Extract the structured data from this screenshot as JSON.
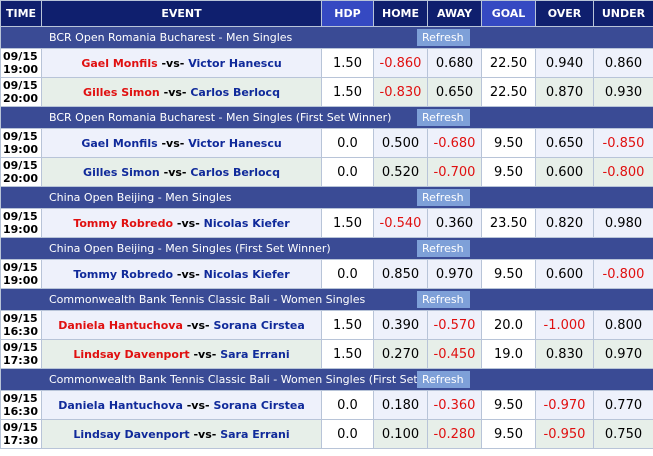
{
  "header": {
    "time": "TIME",
    "event": "EVENT",
    "hdp": "HDP",
    "home": "HOME",
    "away": "AWAY",
    "goal": "GOAL",
    "over": "OVER",
    "under": "UNDER"
  },
  "refresh_label": "Refresh",
  "vs_label": "-vs-",
  "sections": [
    {
      "league": "BCR Open Romania Bucharest - Men Singles",
      "matches": [
        {
          "date": "09/15",
          "time": "19:00",
          "home": "Gael Monfils",
          "away": "Victor Hanescu",
          "home_color": "red",
          "away_color": "navy",
          "hdp": "1.50",
          "home_odds": "-0.860",
          "away_odds": "0.680",
          "goal": "22.50",
          "over": "0.940",
          "under": "0.860"
        },
        {
          "date": "09/15",
          "time": "20:00",
          "home": "Gilles Simon",
          "away": "Carlos Berlocq",
          "home_color": "red",
          "away_color": "navy",
          "hdp": "1.50",
          "home_odds": "-0.830",
          "away_odds": "0.650",
          "goal": "22.50",
          "over": "0.870",
          "under": "0.930"
        }
      ]
    },
    {
      "league": "BCR Open Romania Bucharest - Men Singles (First Set Winner)",
      "matches": [
        {
          "date": "09/15",
          "time": "19:00",
          "home": "Gael Monfils",
          "away": "Victor Hanescu",
          "home_color": "navy",
          "away_color": "navy",
          "hdp": "0.0",
          "home_odds": "0.500",
          "away_odds": "-0.680",
          "goal": "9.50",
          "over": "0.650",
          "under": "-0.850"
        },
        {
          "date": "09/15",
          "time": "20:00",
          "home": "Gilles Simon",
          "away": "Carlos Berlocq",
          "home_color": "navy",
          "away_color": "navy",
          "hdp": "0.0",
          "home_odds": "0.520",
          "away_odds": "-0.700",
          "goal": "9.50",
          "over": "0.600",
          "under": "-0.800"
        }
      ]
    },
    {
      "league": "China Open Beijing - Men Singles",
      "matches": [
        {
          "date": "09/15",
          "time": "19:00",
          "home": "Tommy Robredo",
          "away": "Nicolas Kiefer",
          "home_color": "red",
          "away_color": "navy",
          "hdp": "1.50",
          "home_odds": "-0.540",
          "away_odds": "0.360",
          "goal": "23.50",
          "over": "0.820",
          "under": "0.980"
        }
      ]
    },
    {
      "league": "China Open Beijing - Men Singles (First Set Winner)",
      "matches": [
        {
          "date": "09/15",
          "time": "19:00",
          "home": "Tommy Robredo",
          "away": "Nicolas Kiefer",
          "home_color": "navy",
          "away_color": "navy",
          "hdp": "0.0",
          "home_odds": "0.850",
          "away_odds": "0.970",
          "goal": "9.50",
          "over": "0.600",
          "under": "-0.800"
        }
      ]
    },
    {
      "league": "Commonwealth Bank Tennis Classic Bali - Women Singles",
      "matches": [
        {
          "date": "09/15",
          "time": "16:30",
          "home": "Daniela Hantuchova",
          "away": "Sorana Cirstea",
          "home_color": "red",
          "away_color": "navy",
          "hdp": "1.50",
          "home_odds": "0.390",
          "away_odds": "-0.570",
          "goal": "20.0",
          "over": "-1.000",
          "under": "0.800"
        },
        {
          "date": "09/15",
          "time": "17:30",
          "home": "Lindsay Davenport",
          "away": "Sara Errani",
          "home_color": "red",
          "away_color": "navy",
          "hdp": "1.50",
          "home_odds": "0.270",
          "away_odds": "-0.450",
          "goal": "19.0",
          "over": "0.830",
          "under": "0.970"
        }
      ]
    },
    {
      "league": "Commonwealth Bank Tennis Classic Bali - Women Singles (First Set Winner)",
      "matches": [
        {
          "date": "09/15",
          "time": "16:30",
          "home": "Daniela Hantuchova",
          "away": "Sorana Cirstea",
          "home_color": "navy",
          "away_color": "navy",
          "hdp": "0.0",
          "home_odds": "0.180",
          "away_odds": "-0.360",
          "goal": "9.50",
          "over": "-0.970",
          "under": "0.770"
        },
        {
          "date": "09/15",
          "time": "17:30",
          "home": "Lindsay Davenport",
          "away": "Sara Errani",
          "home_color": "navy",
          "away_color": "navy",
          "hdp": "0.0",
          "home_odds": "0.100",
          "away_odds": "-0.280",
          "goal": "9.50",
          "over": "-0.950",
          "under": "0.750"
        }
      ]
    }
  ]
}
